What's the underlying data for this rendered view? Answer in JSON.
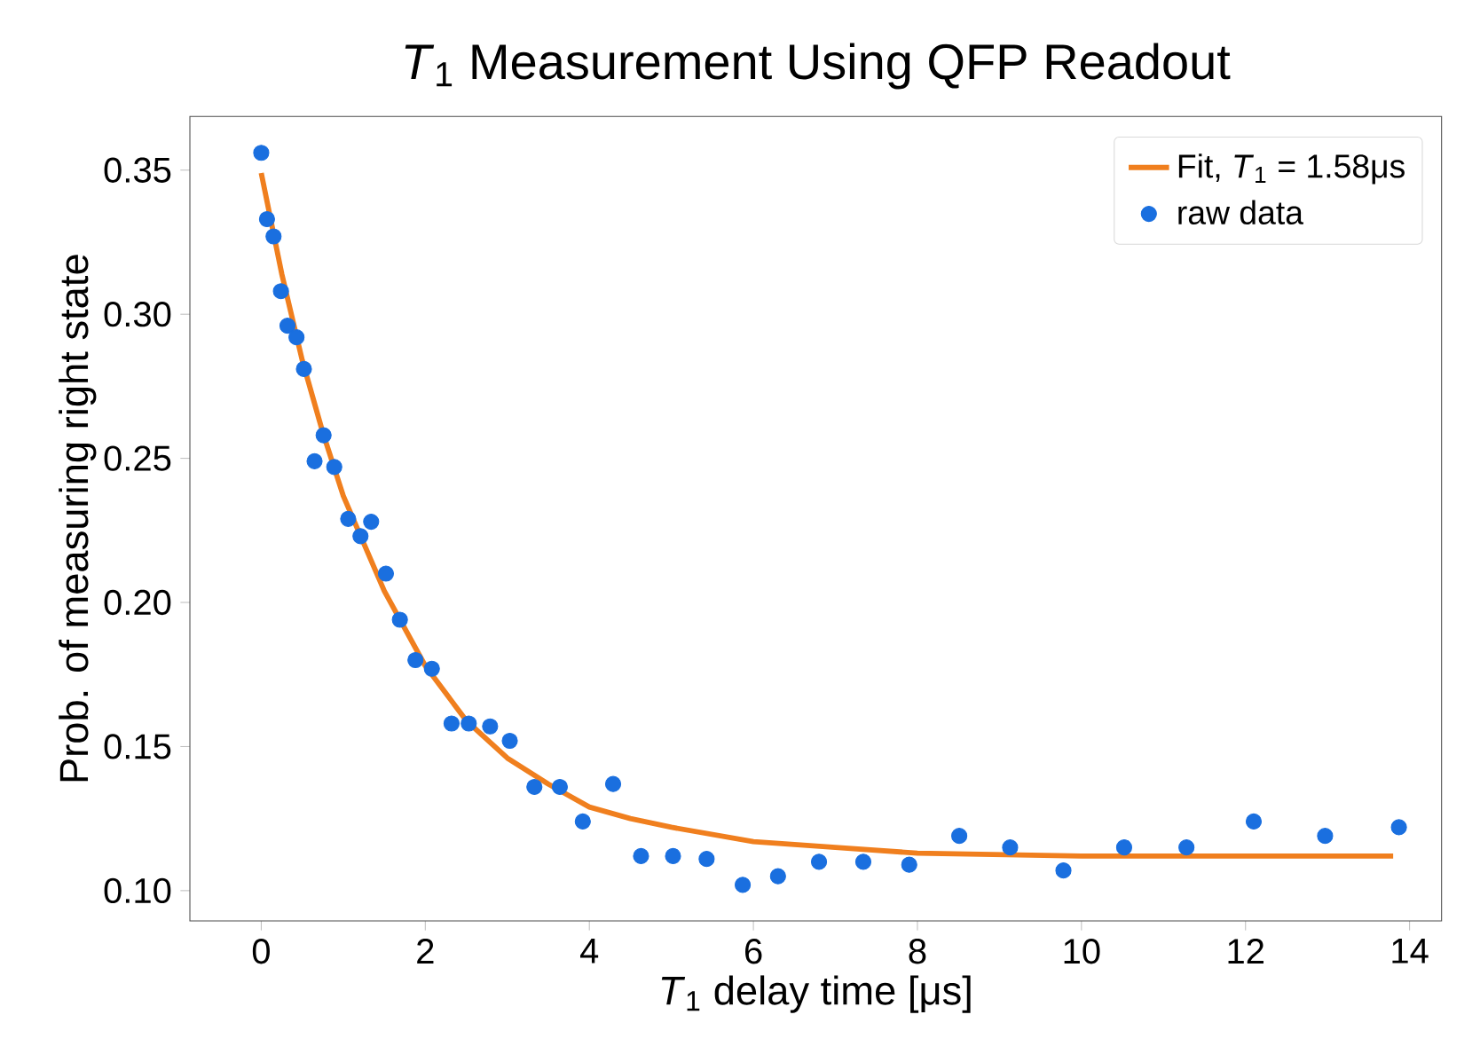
{
  "chart_data": {
    "type": "scatter",
    "title": "*T*$_{1}$ Measurement Using QFP Readout",
    "xlabel": "*T*$_{1}$ delay time [μs]",
    "ylabel": "Prob. of measuring right state",
    "xlim": [
      -0.87,
      14.39
    ],
    "ylim": [
      0.0895,
      0.3686
    ],
    "xticks": [
      0,
      2,
      4,
      6,
      8,
      10,
      12,
      14
    ],
    "yticks": [
      {
        "value": 0.1,
        "label": "0.10"
      },
      0.15,
      {
        "value": 0.2,
        "label": "0.20"
      },
      0.25,
      {
        "value": 0.3,
        "label": "0.30"
      },
      0.35
    ],
    "grid": false,
    "legend": "top right",
    "series": [
      {
        "type": "line",
        "name": "Fit, *T*$_{1}$ = 1.58μs",
        "color": "#f07f1e",
        "marker": "none",
        "line_style": "solid",
        "x": [
          0,
          0.25,
          0.5,
          0.75,
          1,
          1.5,
          2,
          2.5,
          3,
          3.5,
          4,
          4.5,
          5,
          6,
          7,
          8,
          10,
          12,
          13.8
        ],
        "values": [
          0.349,
          0.314,
          0.284,
          0.259,
          0.237,
          0.204,
          0.178,
          0.159,
          0.146,
          0.137,
          0.129,
          0.125,
          0.122,
          0.117,
          0.115,
          0.113,
          0.112,
          0.112,
          0.112
        ]
      },
      {
        "name": "raw data",
        "color": "#1a6fdf",
        "marker": "circle",
        "x": [
          0,
          0.07,
          0.15,
          0.24,
          0.32,
          0.43,
          0.52,
          0.65,
          0.76,
          0.89,
          1.06,
          1.21,
          1.34,
          1.52,
          1.69,
          1.88,
          2.08,
          2.32,
          2.53,
          2.79,
          3.03,
          3.33,
          3.64,
          3.92,
          4.29,
          4.63,
          5.02,
          5.43,
          5.87,
          6.3,
          6.8,
          7.34,
          7.9,
          8.51,
          9.13,
          9.78,
          10.52,
          11.28,
          12.1,
          12.97,
          13.87
        ],
        "values": [
          0.356,
          0.333,
          0.327,
          0.308,
          0.296,
          0.292,
          0.281,
          0.249,
          0.258,
          0.247,
          0.229,
          0.223,
          0.228,
          0.21,
          0.194,
          0.18,
          0.177,
          0.158,
          0.158,
          0.157,
          0.152,
          0.136,
          0.136,
          0.124,
          0.137,
          0.112,
          0.112,
          0.111,
          0.102,
          0.105,
          0.11,
          0.11,
          0.109,
          0.119,
          0.115,
          0.107,
          0.115,
          0.115,
          0.124,
          0.119,
          0.122
        ]
      }
    ]
  }
}
